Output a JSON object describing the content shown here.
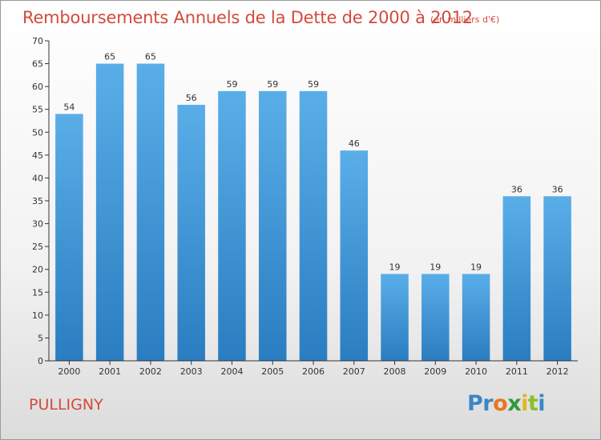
{
  "chart_data": {
    "type": "bar",
    "title": "Remboursements Annuels de la Dette de 2000 à 2012",
    "subtitle": "(en milliers d'€)",
    "categories": [
      "2000",
      "2001",
      "2002",
      "2003",
      "2004",
      "2005",
      "2006",
      "2007",
      "2008",
      "2009",
      "2010",
      "2011",
      "2012"
    ],
    "values": [
      54,
      65,
      65,
      56,
      59,
      59,
      59,
      46,
      19,
      19,
      19,
      36,
      36
    ],
    "ylim": [
      0,
      70
    ],
    "ytick_step": 5,
    "grid": false,
    "bar_color_top": "#5aaee8",
    "bar_color_bottom": "#2a7dc0"
  },
  "commune": "PULLIGNY",
  "logo": {
    "letters": [
      {
        "char": "P",
        "color": "#3a86c8"
      },
      {
        "char": "r",
        "color": "#3a86c8"
      },
      {
        "char": "o",
        "color": "#e8781e"
      },
      {
        "char": "x",
        "color": "#2e9a3a"
      },
      {
        "char": "i",
        "color": "#e0b81a"
      },
      {
        "char": "t",
        "color": "#8bbf2a"
      },
      {
        "char": "i",
        "color": "#3a86c8"
      }
    ]
  },
  "colors": {
    "title": "#d34a3b",
    "axis": "#333333"
  }
}
